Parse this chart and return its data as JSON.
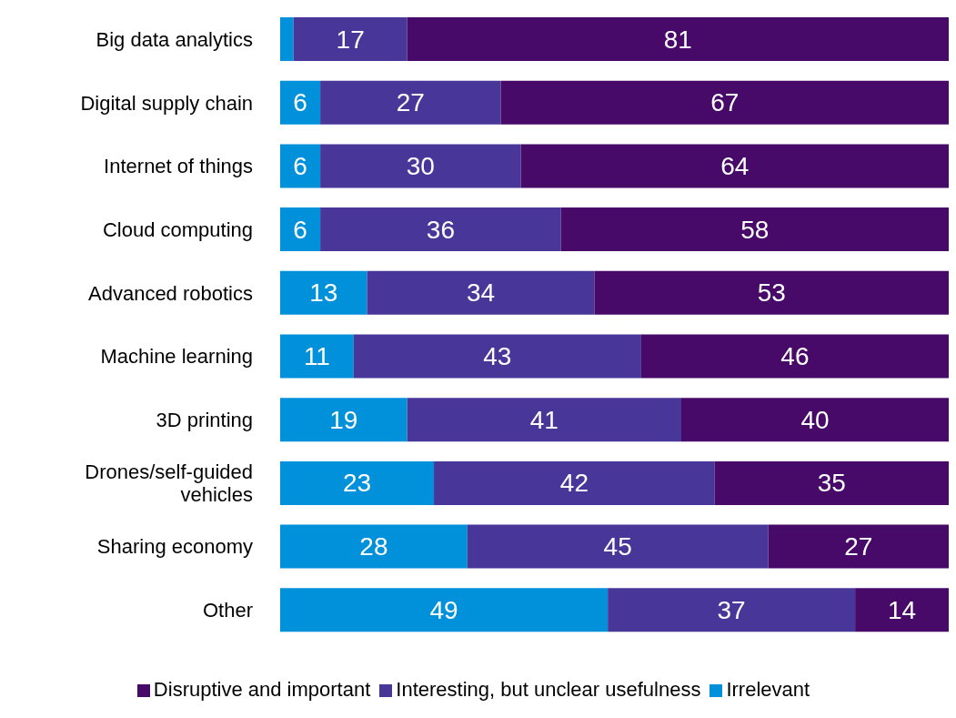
{
  "chart_data": {
    "type": "bar",
    "orientation": "horizontal",
    "stacked": true,
    "categories": [
      "Big data analytics",
      "Digital supply chain",
      "Internet of things",
      "Cloud computing",
      "Advanced robotics",
      "Machine learning",
      "3D printing",
      "Drones/self-guided vehicles",
      "Sharing economy",
      "Other"
    ],
    "xlim": [
      0,
      100
    ],
    "legend": "bottom",
    "grid": false,
    "series": [
      {
        "name": "Irrelevant",
        "color": "#0091da",
        "values": [
          2,
          6,
          6,
          6,
          13,
          11,
          19,
          23,
          28,
          49
        ],
        "value_labels": [
          null,
          "6",
          "6",
          "6",
          "13",
          "11",
          "19",
          "23",
          "28",
          "49"
        ]
      },
      {
        "name": "Interesting, but unclear usefulness",
        "color": "#483698",
        "values": [
          17,
          27,
          30,
          36,
          34,
          43,
          41,
          42,
          45,
          37
        ],
        "value_labels": [
          "17",
          "27",
          "30",
          "36",
          "34",
          "43",
          "41",
          "42",
          "45",
          "37"
        ]
      },
      {
        "name": "Disruptive and important",
        "color": "#470a68",
        "values": [
          81,
          67,
          64,
          58,
          53,
          46,
          40,
          35,
          27,
          14
        ],
        "value_labels": [
          "81",
          "67",
          "64",
          "58",
          "53",
          "46",
          "40",
          "35",
          "27",
          "14"
        ]
      }
    ]
  }
}
